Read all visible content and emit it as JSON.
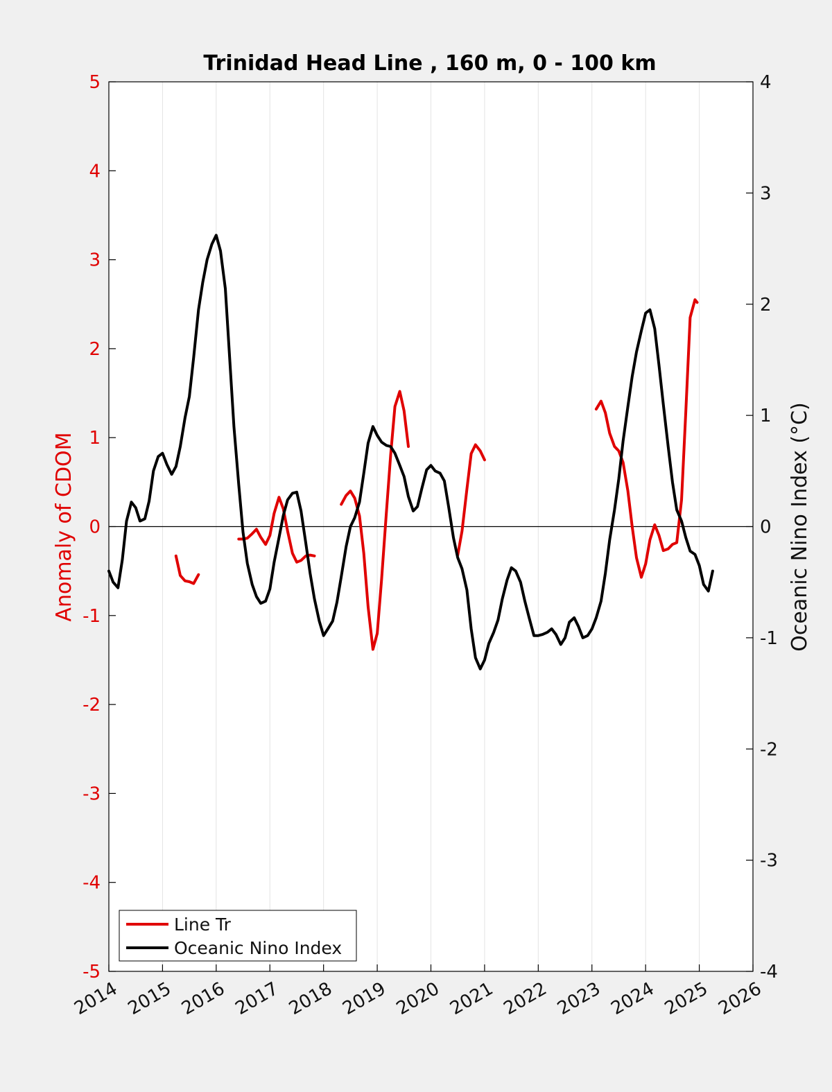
{
  "chart_data": {
    "type": "line",
    "title": "Trinidad Head Line , 160 m, 0 - 100 km",
    "xlim": [
      2014,
      2026
    ],
    "x_ticks": [
      "2014",
      "2015",
      "2016",
      "2017",
      "2018",
      "2019",
      "2020",
      "2021",
      "2022",
      "2023",
      "2024",
      "2025",
      "2026"
    ],
    "y_left": {
      "label": "Anomaly of CDOM",
      "ylim": [
        -5,
        5
      ],
      "ticks": [
        "5",
        "4",
        "3",
        "2",
        "1",
        "0",
        "-1",
        "-2",
        "-3",
        "-4",
        "-5"
      ],
      "color": "#e00000"
    },
    "y_right": {
      "label": "Oceanic Nino Index (°C)",
      "ylim": [
        -4,
        4
      ],
      "ticks": [
        "4",
        "3",
        "2",
        "1",
        "0",
        "-1",
        "-2",
        "-3",
        "-4"
      ],
      "color": "#000000"
    },
    "grid": "vertical",
    "zero_line": true,
    "legend_position": "bottom-left",
    "series": [
      {
        "name": "Line Tr",
        "axis": "left",
        "color": "#e00000",
        "segments": [
          [
            [
              2015.25,
              -0.33
            ],
            [
              2015.33,
              -0.55
            ],
            [
              2015.42,
              -0.61
            ],
            [
              2015.5,
              -0.62
            ],
            [
              2015.58,
              -0.64
            ],
            [
              2015.67,
              -0.54
            ]
          ],
          [
            [
              2016.42,
              -0.14
            ],
            [
              2016.5,
              -0.14
            ],
            [
              2016.58,
              -0.13
            ],
            [
              2016.67,
              -0.08
            ],
            [
              2016.75,
              -0.03
            ],
            [
              2016.83,
              -0.12
            ],
            [
              2016.92,
              -0.2
            ],
            [
              2017.0,
              -0.1
            ],
            [
              2017.08,
              0.15
            ],
            [
              2017.17,
              0.33
            ],
            [
              2017.25,
              0.2
            ],
            [
              2017.33,
              -0.05
            ],
            [
              2017.42,
              -0.3
            ],
            [
              2017.5,
              -0.4
            ],
            [
              2017.58,
              -0.38
            ],
            [
              2017.67,
              -0.33
            ],
            [
              2017.75,
              -0.32
            ],
            [
              2017.83,
              -0.33
            ]
          ],
          [
            [
              2018.33,
              0.25
            ],
            [
              2018.42,
              0.35
            ],
            [
              2018.5,
              0.4
            ],
            [
              2018.58,
              0.32
            ],
            [
              2018.67,
              0.12
            ],
            [
              2018.75,
              -0.3
            ],
            [
              2018.83,
              -0.9
            ],
            [
              2018.92,
              -1.38
            ],
            [
              2019.0,
              -1.2
            ],
            [
              2019.08,
              -0.6
            ],
            [
              2019.17,
              0.15
            ],
            [
              2019.25,
              0.8
            ],
            [
              2019.33,
              1.35
            ],
            [
              2019.42,
              1.52
            ],
            [
              2019.5,
              1.3
            ],
            [
              2019.58,
              0.9
            ]
          ],
          [
            [
              2020.5,
              -0.32
            ],
            [
              2020.58,
              -0.05
            ],
            [
              2020.67,
              0.42
            ],
            [
              2020.75,
              0.82
            ],
            [
              2020.83,
              0.92
            ],
            [
              2020.92,
              0.85
            ],
            [
              2021.0,
              0.75
            ]
          ],
          [
            [
              2023.08,
              1.32
            ],
            [
              2023.17,
              1.41
            ],
            [
              2023.25,
              1.28
            ],
            [
              2023.33,
              1.05
            ],
            [
              2023.42,
              0.9
            ],
            [
              2023.5,
              0.85
            ],
            [
              2023.58,
              0.72
            ],
            [
              2023.67,
              0.4
            ],
            [
              2023.75,
              0.0
            ],
            [
              2023.83,
              -0.35
            ],
            [
              2023.92,
              -0.57
            ],
            [
              2024.0,
              -0.42
            ],
            [
              2024.08,
              -0.15
            ],
            [
              2024.17,
              0.02
            ],
            [
              2024.25,
              -0.1
            ],
            [
              2024.33,
              -0.27
            ],
            [
              2024.42,
              -0.25
            ],
            [
              2024.5,
              -0.2
            ],
            [
              2024.58,
              -0.18
            ],
            [
              2024.67,
              0.3
            ],
            [
              2024.75,
              1.3
            ],
            [
              2024.83,
              2.35
            ],
            [
              2024.92,
              2.55
            ],
            [
              2024.96,
              2.52
            ]
          ]
        ]
      },
      {
        "name": "Oceanic Nino Index",
        "axis": "right",
        "color": "#000000",
        "segments": [
          [
            [
              2014.0,
              -0.4
            ],
            [
              2014.08,
              -0.5
            ],
            [
              2014.17,
              -0.55
            ],
            [
              2014.25,
              -0.3
            ],
            [
              2014.33,
              0.05
            ],
            [
              2014.42,
              0.22
            ],
            [
              2014.5,
              0.17
            ],
            [
              2014.58,
              0.05
            ],
            [
              2014.67,
              0.07
            ],
            [
              2014.75,
              0.23
            ],
            [
              2014.83,
              0.5
            ],
            [
              2014.92,
              0.63
            ],
            [
              2015.0,
              0.66
            ],
            [
              2015.08,
              0.56
            ],
            [
              2015.17,
              0.47
            ],
            [
              2015.25,
              0.54
            ],
            [
              2015.33,
              0.72
            ],
            [
              2015.42,
              0.98
            ],
            [
              2015.5,
              1.17
            ],
            [
              2015.58,
              1.52
            ],
            [
              2015.67,
              1.95
            ],
            [
              2015.75,
              2.2
            ],
            [
              2015.83,
              2.4
            ],
            [
              2015.92,
              2.54
            ],
            [
              2016.0,
              2.62
            ],
            [
              2016.08,
              2.48
            ],
            [
              2016.17,
              2.14
            ],
            [
              2016.25,
              1.52
            ],
            [
              2016.33,
              0.9
            ],
            [
              2016.42,
              0.38
            ],
            [
              2016.5,
              -0.05
            ],
            [
              2016.58,
              -0.33
            ],
            [
              2016.67,
              -0.52
            ],
            [
              2016.75,
              -0.63
            ],
            [
              2016.83,
              -0.69
            ],
            [
              2016.92,
              -0.67
            ],
            [
              2017.0,
              -0.56
            ],
            [
              2017.08,
              -0.32
            ],
            [
              2017.17,
              -0.1
            ],
            [
              2017.25,
              0.1
            ],
            [
              2017.33,
              0.24
            ],
            [
              2017.42,
              0.3
            ],
            [
              2017.5,
              0.31
            ],
            [
              2017.58,
              0.14
            ],
            [
              2017.67,
              -0.15
            ],
            [
              2017.75,
              -0.42
            ],
            [
              2017.83,
              -0.65
            ],
            [
              2017.92,
              -0.85
            ],
            [
              2018.0,
              -0.98
            ],
            [
              2018.08,
              -0.92
            ],
            [
              2018.17,
              -0.85
            ],
            [
              2018.25,
              -0.68
            ],
            [
              2018.33,
              -0.45
            ],
            [
              2018.42,
              -0.18
            ],
            [
              2018.5,
              0.0
            ],
            [
              2018.58,
              0.08
            ],
            [
              2018.67,
              0.22
            ],
            [
              2018.75,
              0.48
            ],
            [
              2018.83,
              0.75
            ],
            [
              2018.92,
              0.9
            ],
            [
              2019.0,
              0.82
            ],
            [
              2019.08,
              0.76
            ],
            [
              2019.17,
              0.73
            ],
            [
              2019.25,
              0.72
            ],
            [
              2019.33,
              0.66
            ],
            [
              2019.42,
              0.55
            ],
            [
              2019.5,
              0.45
            ],
            [
              2019.58,
              0.27
            ],
            [
              2019.67,
              0.14
            ],
            [
              2019.75,
              0.18
            ],
            [
              2019.83,
              0.34
            ],
            [
              2019.92,
              0.51
            ],
            [
              2020.0,
              0.55
            ],
            [
              2020.08,
              0.5
            ],
            [
              2020.17,
              0.48
            ],
            [
              2020.25,
              0.41
            ],
            [
              2020.33,
              0.18
            ],
            [
              2020.42,
              -0.1
            ],
            [
              2020.5,
              -0.28
            ],
            [
              2020.58,
              -0.38
            ],
            [
              2020.67,
              -0.57
            ],
            [
              2020.75,
              -0.92
            ],
            [
              2020.83,
              -1.18
            ],
            [
              2020.92,
              -1.28
            ],
            [
              2021.0,
              -1.2
            ],
            [
              2021.08,
              -1.05
            ],
            [
              2021.17,
              -0.95
            ],
            [
              2021.25,
              -0.84
            ],
            [
              2021.33,
              -0.65
            ],
            [
              2021.42,
              -0.48
            ],
            [
              2021.5,
              -0.37
            ],
            [
              2021.58,
              -0.4
            ],
            [
              2021.67,
              -0.5
            ],
            [
              2021.75,
              -0.67
            ],
            [
              2021.83,
              -0.82
            ],
            [
              2021.92,
              -0.98
            ],
            [
              2022.0,
              -0.98
            ],
            [
              2022.08,
              -0.97
            ],
            [
              2022.17,
              -0.95
            ],
            [
              2022.25,
              -0.92
            ],
            [
              2022.33,
              -0.97
            ],
            [
              2022.42,
              -1.06
            ],
            [
              2022.5,
              -1.0
            ],
            [
              2022.58,
              -0.86
            ],
            [
              2022.67,
              -0.82
            ],
            [
              2022.75,
              -0.9
            ],
            [
              2022.83,
              -1.0
            ],
            [
              2022.92,
              -0.98
            ],
            [
              2023.0,
              -0.92
            ],
            [
              2023.08,
              -0.82
            ],
            [
              2023.17,
              -0.67
            ],
            [
              2023.25,
              -0.42
            ],
            [
              2023.33,
              -0.12
            ],
            [
              2023.42,
              0.15
            ],
            [
              2023.5,
              0.43
            ],
            [
              2023.58,
              0.77
            ],
            [
              2023.67,
              1.08
            ],
            [
              2023.75,
              1.35
            ],
            [
              2023.83,
              1.57
            ],
            [
              2023.92,
              1.76
            ],
            [
              2024.0,
              1.92
            ],
            [
              2024.08,
              1.95
            ],
            [
              2024.17,
              1.78
            ],
            [
              2024.25,
              1.45
            ],
            [
              2024.33,
              1.1
            ],
            [
              2024.42,
              0.72
            ],
            [
              2024.5,
              0.4
            ],
            [
              2024.58,
              0.15
            ],
            [
              2024.67,
              0.05
            ],
            [
              2024.75,
              -0.1
            ],
            [
              2024.83,
              -0.22
            ],
            [
              2024.92,
              -0.25
            ],
            [
              2025.0,
              -0.35
            ],
            [
              2025.08,
              -0.52
            ],
            [
              2025.17,
              -0.58
            ],
            [
              2025.25,
              -0.4
            ]
          ]
        ]
      }
    ]
  }
}
